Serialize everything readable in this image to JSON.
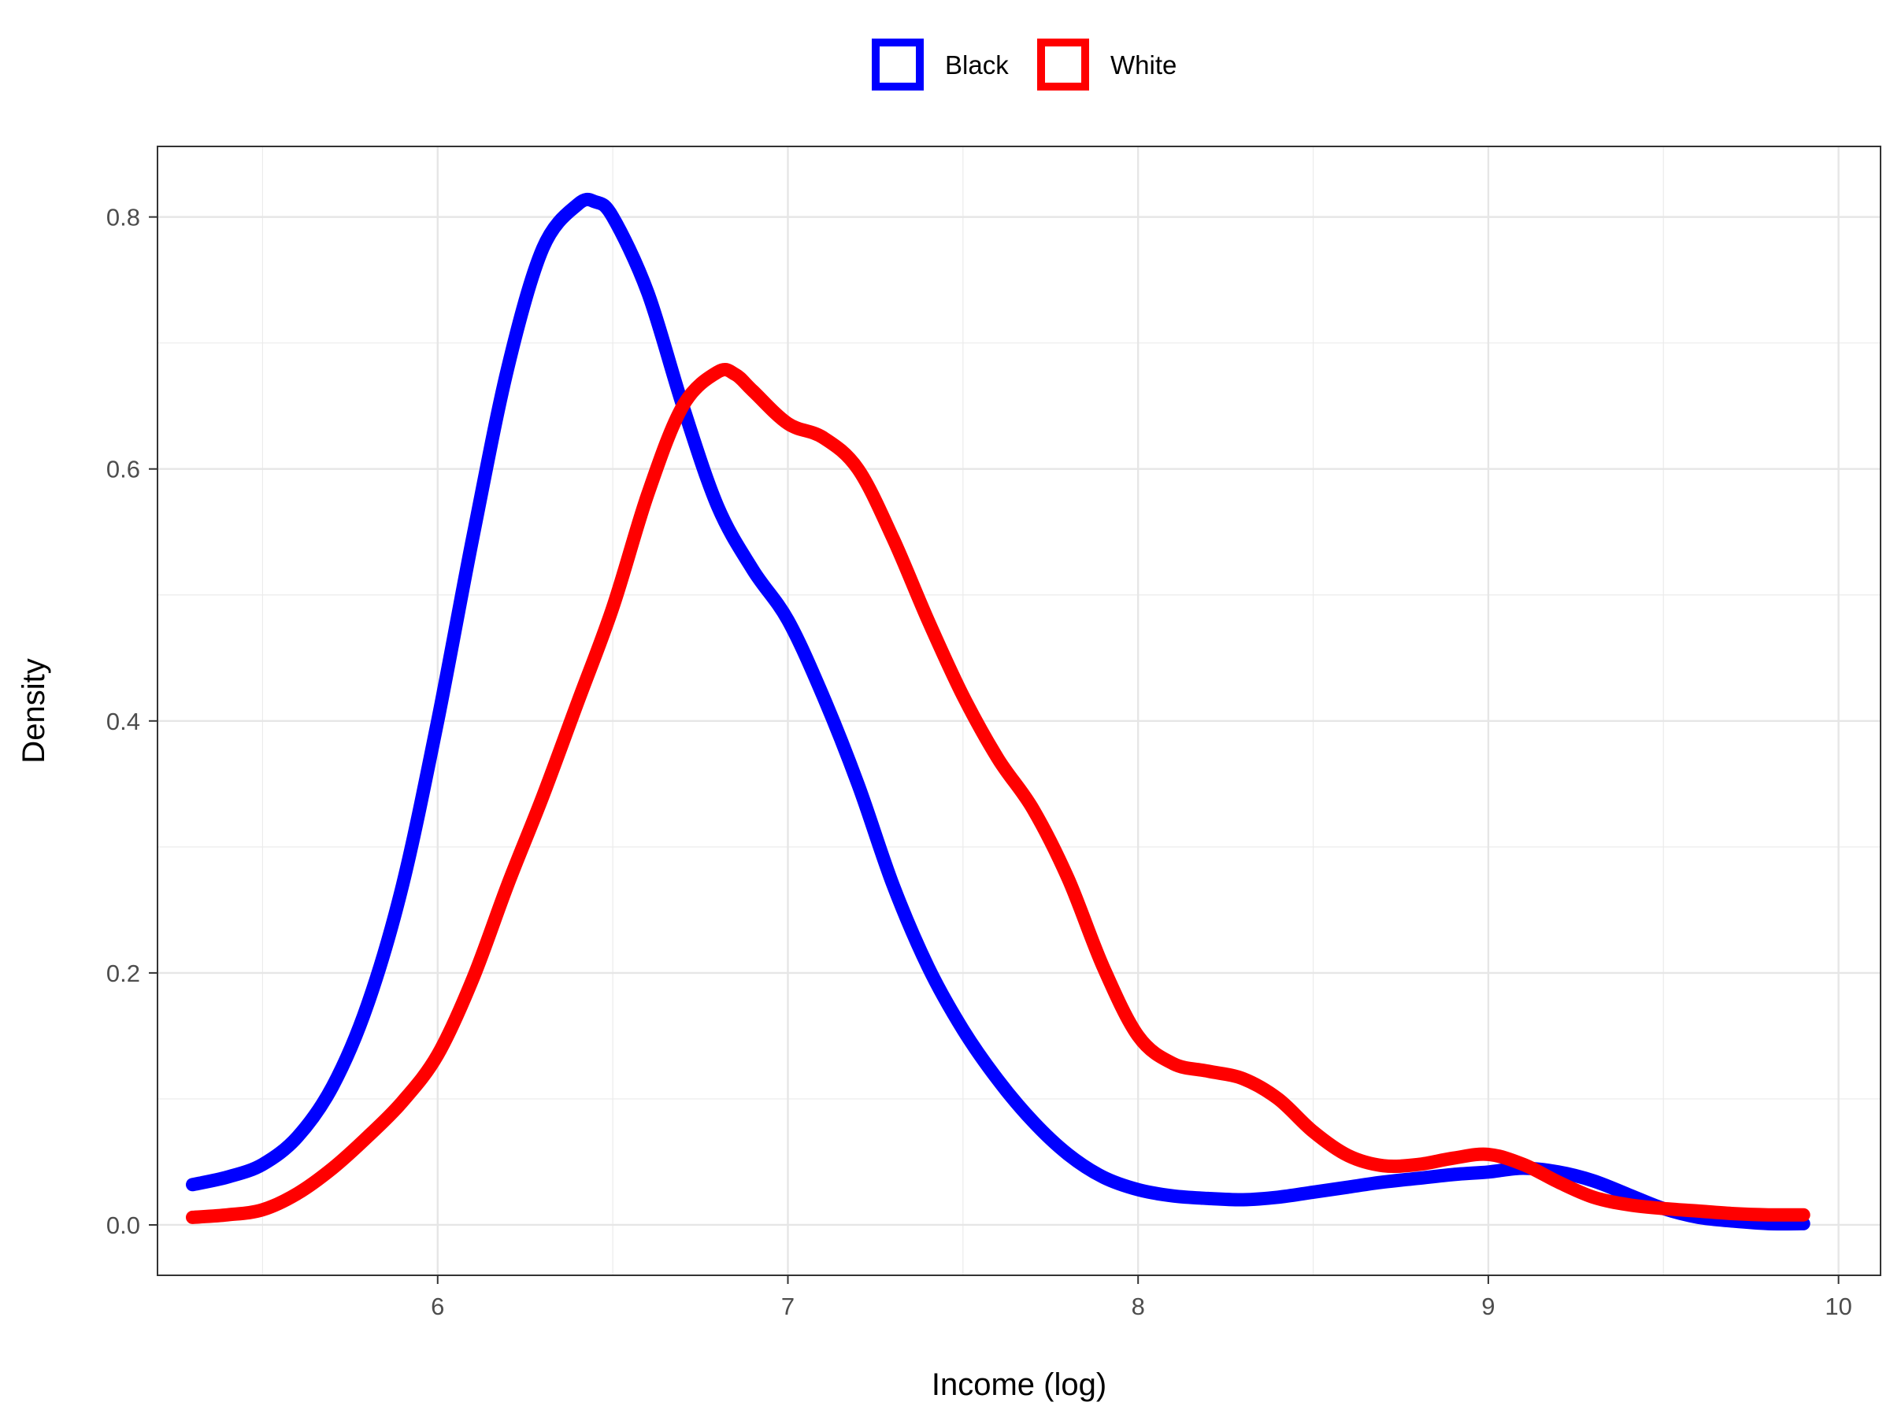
{
  "chart_data": {
    "type": "line",
    "title": "",
    "xlabel": "Income (log)",
    "ylabel": "Density",
    "xlim": [
      5.2,
      10.12
    ],
    "ylim": [
      -0.04,
      0.856
    ],
    "x_ticks": [
      6,
      7,
      8,
      9,
      10
    ],
    "x_tick_labels": [
      "6",
      "7",
      "8",
      "9",
      "10"
    ],
    "x_minor_ticks": [
      5.5,
      6.5,
      7.5,
      8.5,
      9.5
    ],
    "y_ticks": [
      0.0,
      0.2,
      0.4,
      0.6,
      0.8
    ],
    "y_tick_labels": [
      "0.0",
      "0.2",
      "0.4",
      "0.6",
      "0.8"
    ],
    "y_minor_ticks": [
      0.1,
      0.3,
      0.5,
      0.7
    ],
    "grid": true,
    "legend_position": "top",
    "series": [
      {
        "name": "Black",
        "color": "#0000FF",
        "points": [
          [
            5.3,
            0.032
          ],
          [
            5.4,
            0.038
          ],
          [
            5.5,
            0.048
          ],
          [
            5.6,
            0.07
          ],
          [
            5.7,
            0.11
          ],
          [
            5.8,
            0.175
          ],
          [
            5.9,
            0.27
          ],
          [
            6.0,
            0.4
          ],
          [
            6.1,
            0.545
          ],
          [
            6.2,
            0.68
          ],
          [
            6.3,
            0.775
          ],
          [
            6.4,
            0.81
          ],
          [
            6.45,
            0.812
          ],
          [
            6.5,
            0.8
          ],
          [
            6.6,
            0.74
          ],
          [
            6.7,
            0.65
          ],
          [
            6.8,
            0.57
          ],
          [
            6.9,
            0.52
          ],
          [
            7.0,
            0.48
          ],
          [
            7.1,
            0.42
          ],
          [
            7.2,
            0.35
          ],
          [
            7.3,
            0.27
          ],
          [
            7.4,
            0.205
          ],
          [
            7.5,
            0.155
          ],
          [
            7.6,
            0.115
          ],
          [
            7.7,
            0.082
          ],
          [
            7.8,
            0.056
          ],
          [
            7.9,
            0.038
          ],
          [
            8.0,
            0.028
          ],
          [
            8.1,
            0.023
          ],
          [
            8.2,
            0.021
          ],
          [
            8.3,
            0.02
          ],
          [
            8.4,
            0.022
          ],
          [
            8.5,
            0.026
          ],
          [
            8.6,
            0.03
          ],
          [
            8.7,
            0.034
          ],
          [
            8.8,
            0.037
          ],
          [
            8.9,
            0.04
          ],
          [
            9.0,
            0.042
          ],
          [
            9.1,
            0.045
          ],
          [
            9.2,
            0.042
          ],
          [
            9.3,
            0.035
          ],
          [
            9.4,
            0.024
          ],
          [
            9.5,
            0.013
          ],
          [
            9.6,
            0.006
          ],
          [
            9.7,
            0.003
          ],
          [
            9.8,
            0.001
          ],
          [
            9.9,
            0.001
          ]
        ]
      },
      {
        "name": "White",
        "color": "#FF0000",
        "points": [
          [
            5.3,
            0.006
          ],
          [
            5.4,
            0.008
          ],
          [
            5.5,
            0.012
          ],
          [
            5.6,
            0.025
          ],
          [
            5.7,
            0.045
          ],
          [
            5.8,
            0.07
          ],
          [
            5.9,
            0.098
          ],
          [
            6.0,
            0.135
          ],
          [
            6.1,
            0.195
          ],
          [
            6.2,
            0.27
          ],
          [
            6.3,
            0.34
          ],
          [
            6.4,
            0.415
          ],
          [
            6.5,
            0.49
          ],
          [
            6.6,
            0.58
          ],
          [
            6.7,
            0.65
          ],
          [
            6.8,
            0.677
          ],
          [
            6.85,
            0.675
          ],
          [
            6.9,
            0.662
          ],
          [
            7.0,
            0.636
          ],
          [
            7.1,
            0.625
          ],
          [
            7.2,
            0.6
          ],
          [
            7.3,
            0.545
          ],
          [
            7.4,
            0.48
          ],
          [
            7.5,
            0.42
          ],
          [
            7.6,
            0.37
          ],
          [
            7.7,
            0.33
          ],
          [
            7.8,
            0.275
          ],
          [
            7.9,
            0.205
          ],
          [
            8.0,
            0.15
          ],
          [
            8.1,
            0.128
          ],
          [
            8.2,
            0.122
          ],
          [
            8.3,
            0.116
          ],
          [
            8.4,
            0.1
          ],
          [
            8.5,
            0.074
          ],
          [
            8.6,
            0.055
          ],
          [
            8.7,
            0.047
          ],
          [
            8.8,
            0.048
          ],
          [
            8.9,
            0.053
          ],
          [
            9.0,
            0.056
          ],
          [
            9.1,
            0.048
          ],
          [
            9.2,
            0.034
          ],
          [
            9.3,
            0.022
          ],
          [
            9.4,
            0.016
          ],
          [
            9.5,
            0.013
          ],
          [
            9.6,
            0.011
          ],
          [
            9.7,
            0.009
          ],
          [
            9.8,
            0.008
          ],
          [
            9.9,
            0.008
          ]
        ]
      }
    ]
  }
}
